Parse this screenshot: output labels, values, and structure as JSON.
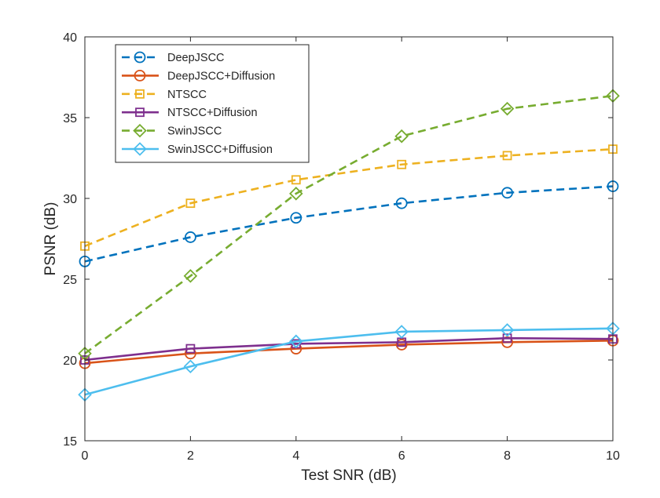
{
  "chart_data": {
    "type": "line",
    "title": "",
    "xlabel": "Test SNR (dB)",
    "ylabel": "PSNR (dB)",
    "xlim": [
      0,
      10
    ],
    "ylim": [
      15,
      40
    ],
    "xticks": [
      0,
      2,
      4,
      6,
      8,
      10
    ],
    "yticks": [
      15,
      20,
      25,
      30,
      35,
      40
    ],
    "grid": false,
    "legend_position": "top-left",
    "x": [
      0,
      2,
      4,
      6,
      8,
      10
    ],
    "series": [
      {
        "name": "DeepJSCC",
        "color": "#0072BD",
        "dash": "dashed",
        "marker": "circle",
        "values": [
          26.1,
          27.6,
          28.8,
          29.7,
          30.35,
          30.75
        ]
      },
      {
        "name": "DeepJSCC+Diffusion",
        "color": "#D95319",
        "dash": "solid",
        "marker": "circle",
        "values": [
          19.8,
          20.4,
          20.7,
          20.95,
          21.1,
          21.2
        ]
      },
      {
        "name": "NTSCC",
        "color": "#EDB120",
        "dash": "dashed",
        "marker": "square",
        "values": [
          27.05,
          29.7,
          31.15,
          32.1,
          32.65,
          33.05
        ]
      },
      {
        "name": "NTSCC+Diffusion",
        "color": "#7E2F8E",
        "dash": "solid",
        "marker": "square",
        "values": [
          20.0,
          20.7,
          21.0,
          21.1,
          21.35,
          21.3
        ]
      },
      {
        "name": "SwinJSCC",
        "color": "#77AC30",
        "dash": "dashed",
        "marker": "diamond",
        "values": [
          20.4,
          25.2,
          30.3,
          33.85,
          35.55,
          36.35
        ]
      },
      {
        "name": "SwinJSCC+Diffusion",
        "color": "#4DBEEE",
        "dash": "solid",
        "marker": "diamond",
        "values": [
          17.85,
          19.6,
          21.15,
          21.75,
          21.85,
          21.95
        ]
      }
    ]
  }
}
